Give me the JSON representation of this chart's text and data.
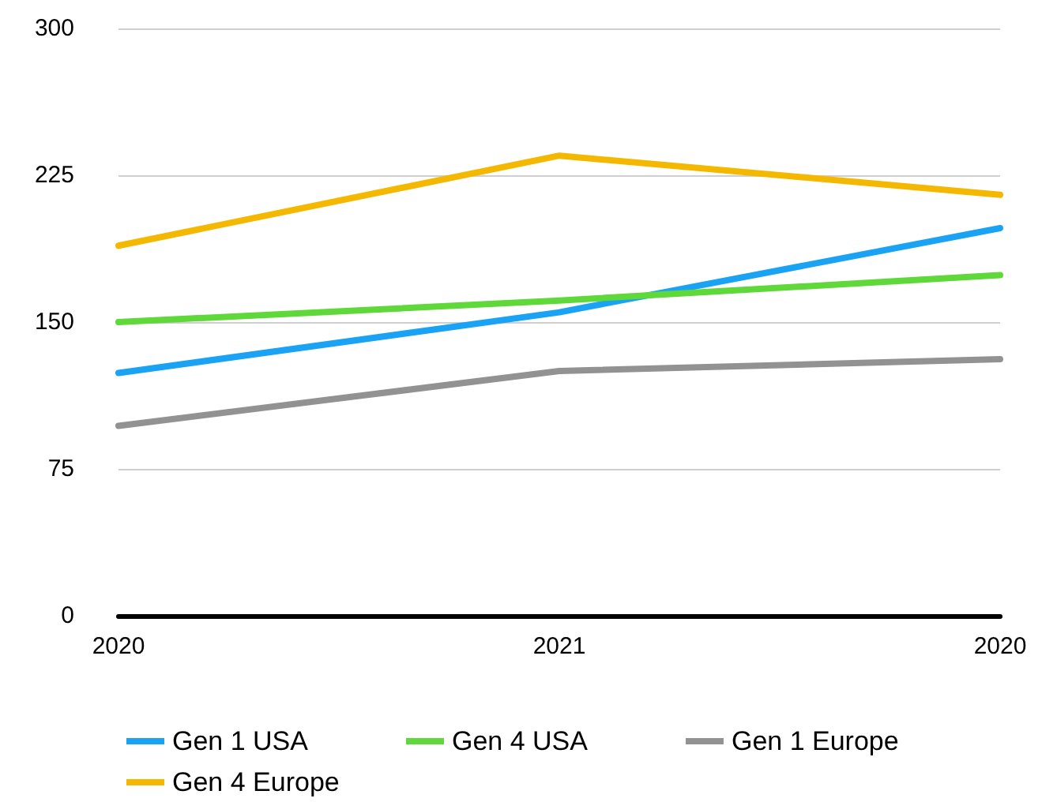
{
  "chart_data": {
    "type": "line",
    "categories": [
      "2020",
      "2021",
      "2020"
    ],
    "series": [
      {
        "name": "Gen 1 USA",
        "color": "#1aa3f5",
        "values": [
          124,
          155,
          198
        ]
      },
      {
        "name": "Gen 4 USA",
        "color": "#5fd83a",
        "values": [
          150,
          161,
          174
        ]
      },
      {
        "name": "Gen 1 Europe",
        "color": "#929292",
        "values": [
          97,
          125,
          131
        ]
      },
      {
        "name": "Gen 4 Europe",
        "color": "#f5b800",
        "values": [
          189,
          235,
          215
        ]
      }
    ],
    "ylim": [
      0,
      300
    ],
    "yticks": [
      0,
      75,
      150,
      225,
      300
    ],
    "grid": "y",
    "legend": "bottom",
    "marker": "none",
    "line_style": "solid"
  }
}
